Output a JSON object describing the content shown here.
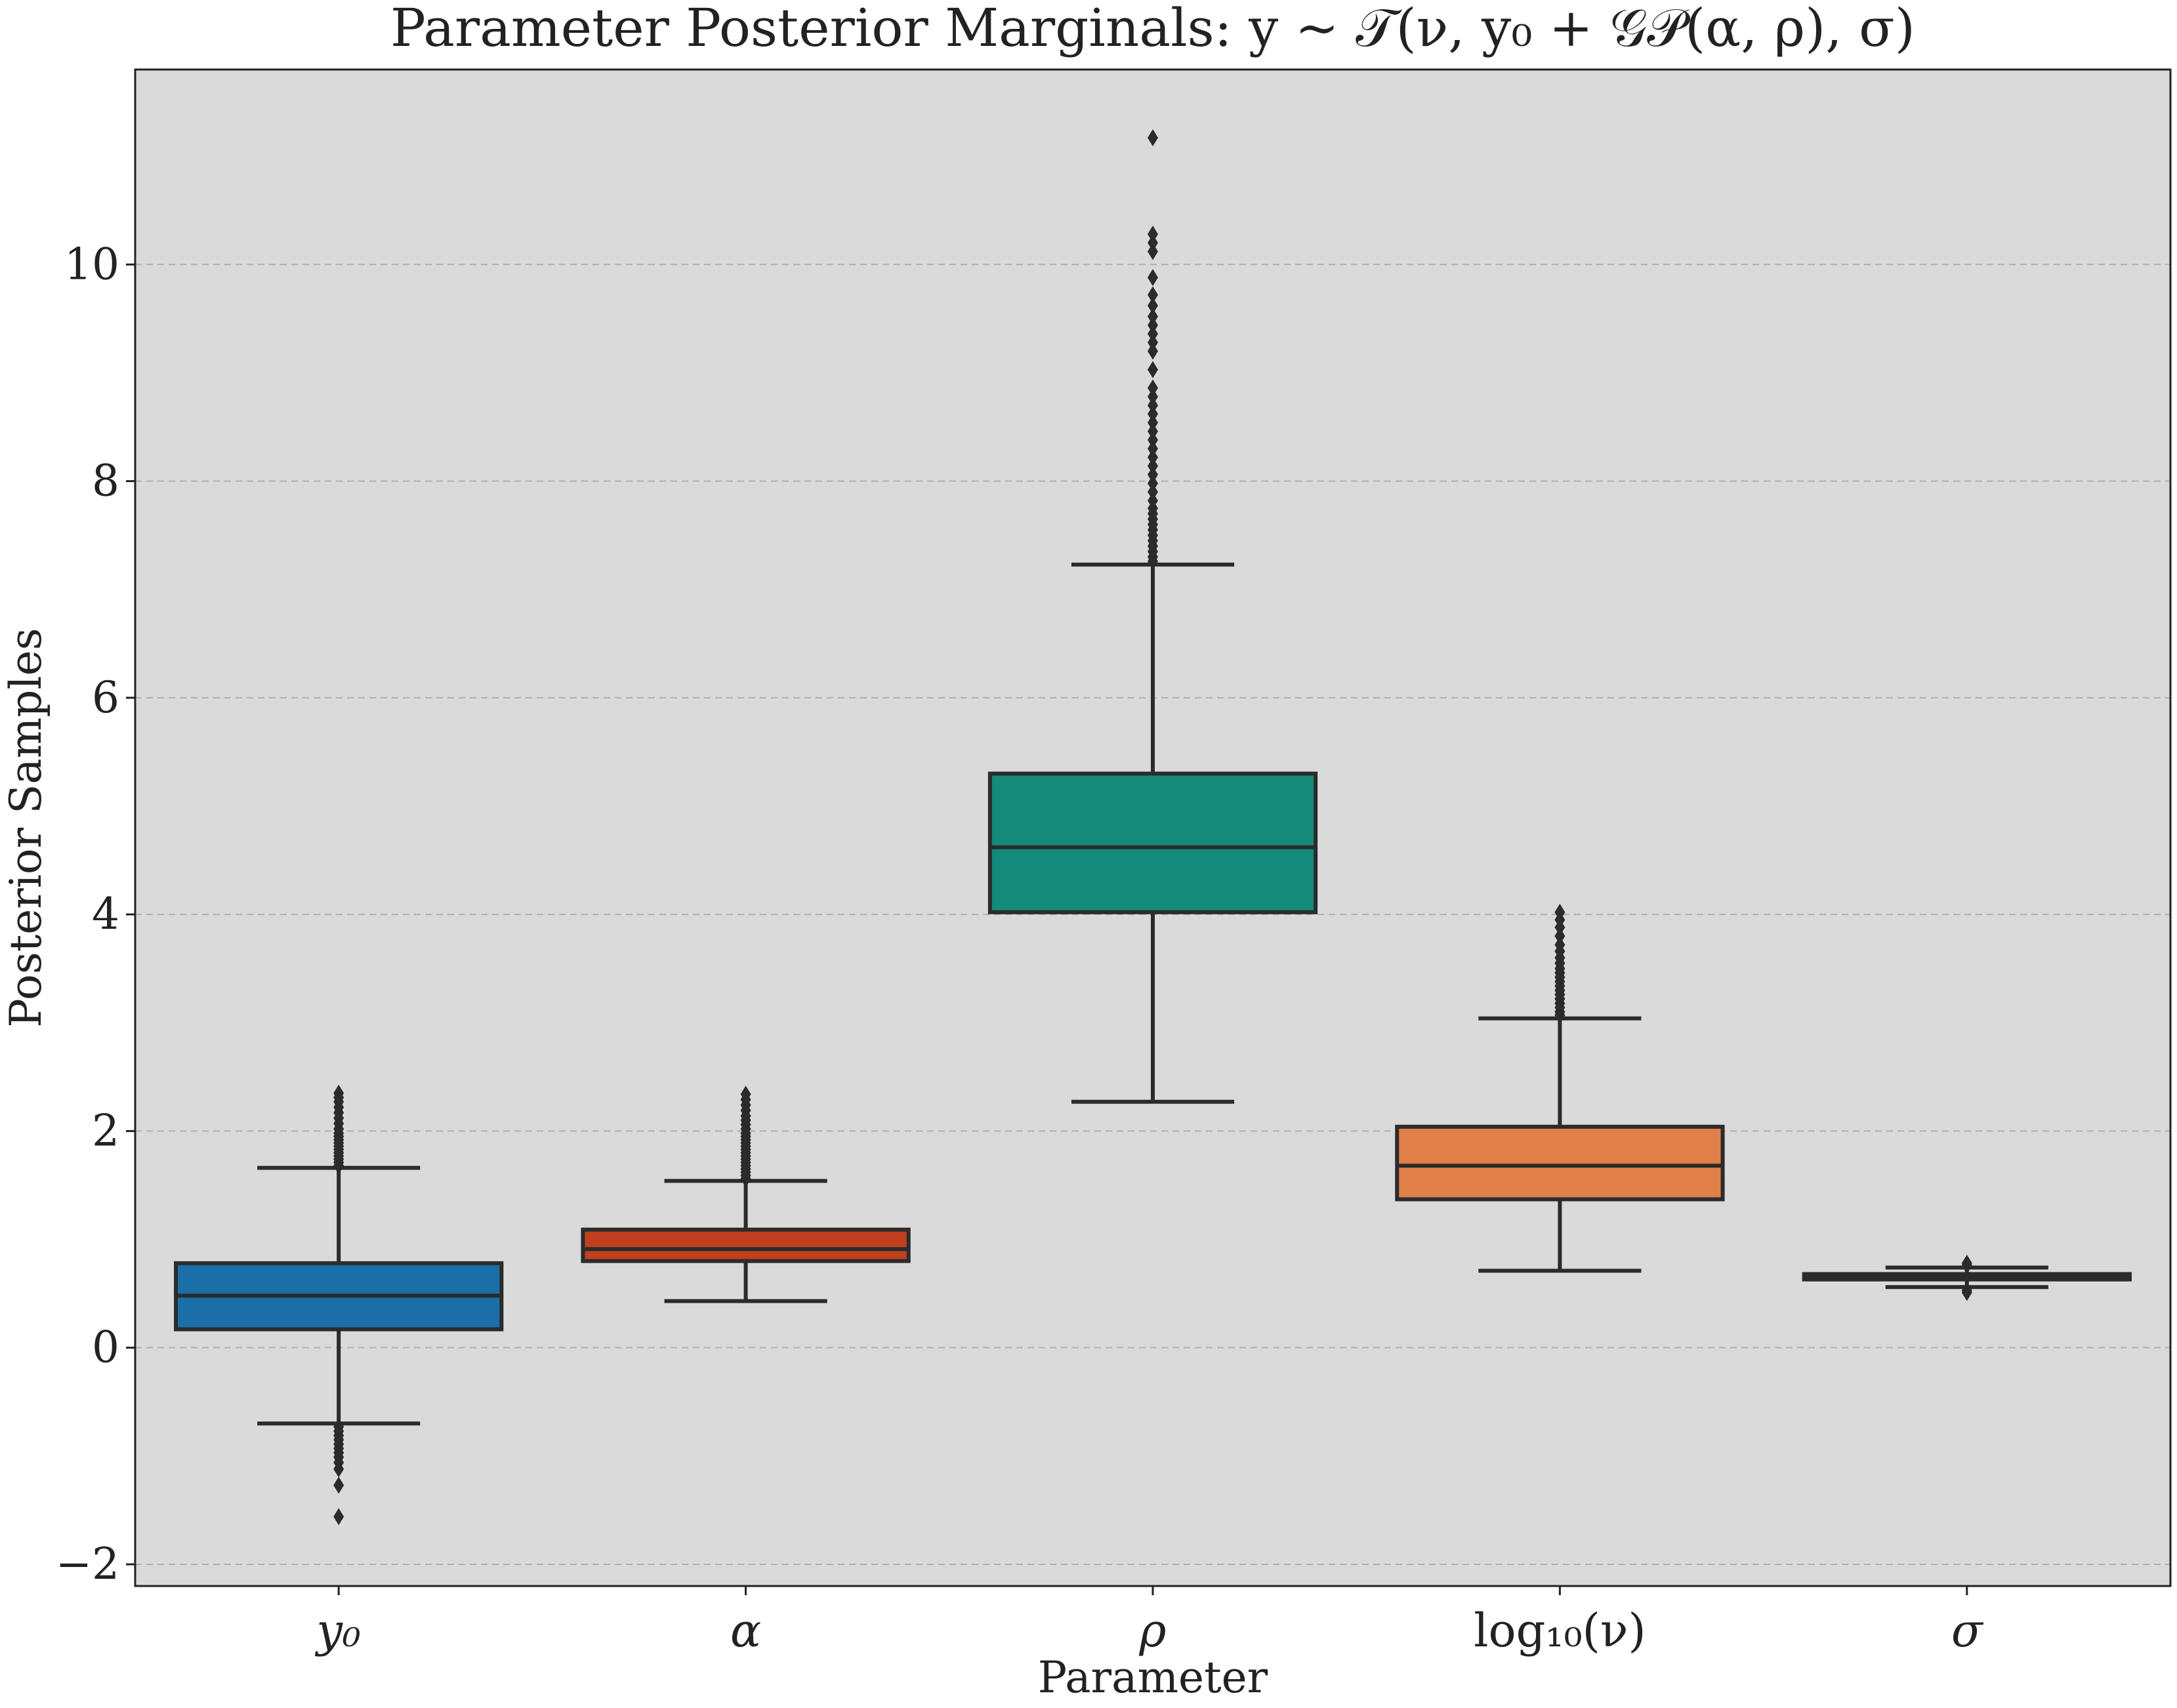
{
  "chart_data": {
    "type": "box",
    "title": "Parameter Posterior Marginals: y ~ 𝒯(ν, y₀ + 𝒢𝒫(α, ρ), σ)",
    "xlabel": "Parameter",
    "ylabel": "Posterior Samples",
    "ylim": [
      -2.2,
      11.8
    ],
    "yticks": [
      -2,
      0,
      2,
      4,
      6,
      8,
      10
    ],
    "ytick_labels": [
      "−2",
      "0",
      "2",
      "4",
      "6",
      "8",
      "10"
    ],
    "grid": {
      "y": true,
      "style": "dashed"
    },
    "background": "#dadada",
    "categories": [
      "y₀",
      "α",
      "ρ",
      "log₁₀(ν)",
      "σ"
    ],
    "boxes": [
      {
        "category": "y₀",
        "color": "#1a6fa8",
        "whisker_low": -0.7,
        "q1": 0.17,
        "median": 0.48,
        "q3": 0.78,
        "whisker_high": 1.66,
        "outliers": [
          1.68,
          1.71,
          1.74,
          1.77,
          1.8,
          1.83,
          1.86,
          1.89,
          1.92,
          1.95,
          1.98,
          2.02,
          2.07,
          2.12,
          2.17,
          2.22,
          2.27,
          2.31,
          2.35,
          -0.73,
          -0.77,
          -0.81,
          -0.85,
          -0.89,
          -0.93,
          -0.97,
          -1.01,
          -1.06,
          -1.12,
          -1.27,
          -1.56
        ]
      },
      {
        "category": "α",
        "color": "#c0401e",
        "whisker_low": 0.43,
        "q1": 0.8,
        "median": 0.91,
        "q3": 1.09,
        "whisker_high": 1.54,
        "outliers": [
          1.56,
          1.59,
          1.62,
          1.65,
          1.68,
          1.71,
          1.74,
          1.77,
          1.8,
          1.83,
          1.86,
          1.89,
          1.92,
          1.95,
          1.98,
          2.02,
          2.06,
          2.1,
          2.14,
          2.19,
          2.24,
          2.29,
          2.34
        ]
      },
      {
        "category": "ρ",
        "color": "#138a7a",
        "whisker_low": 2.27,
        "q1": 4.02,
        "median": 4.62,
        "q3": 5.3,
        "whisker_high": 7.23,
        "outliers": [
          7.26,
          7.3,
          7.35,
          7.4,
          7.45,
          7.5,
          7.55,
          7.6,
          7.65,
          7.7,
          7.75,
          7.82,
          7.9,
          7.98,
          8.06,
          8.14,
          8.22,
          8.3,
          8.38,
          8.46,
          8.54,
          8.62,
          8.7,
          8.78,
          8.86,
          9.03,
          9.2,
          9.28,
          9.36,
          9.44,
          9.52,
          9.62,
          9.72,
          9.88,
          10.12,
          10.2,
          10.28,
          11.17
        ]
      },
      {
        "category": "log₁₀(ν)",
        "color": "#e07f48",
        "whisker_low": 0.71,
        "q1": 1.37,
        "median": 1.68,
        "q3": 2.04,
        "whisker_high": 3.04,
        "outliers": [
          3.07,
          3.1,
          3.14,
          3.18,
          3.22,
          3.26,
          3.3,
          3.34,
          3.38,
          3.42,
          3.46,
          3.5,
          3.55,
          3.6,
          3.66,
          3.72,
          3.8,
          3.88,
          3.95,
          4.02
        ]
      },
      {
        "category": "σ",
        "color": "#d9d9d9",
        "whisker_low": 0.56,
        "q1": 0.63,
        "median": 0.655,
        "q3": 0.68,
        "whisker_high": 0.74,
        "outliers": [
          0.76,
          0.78,
          0.53,
          0.51
        ]
      }
    ]
  }
}
